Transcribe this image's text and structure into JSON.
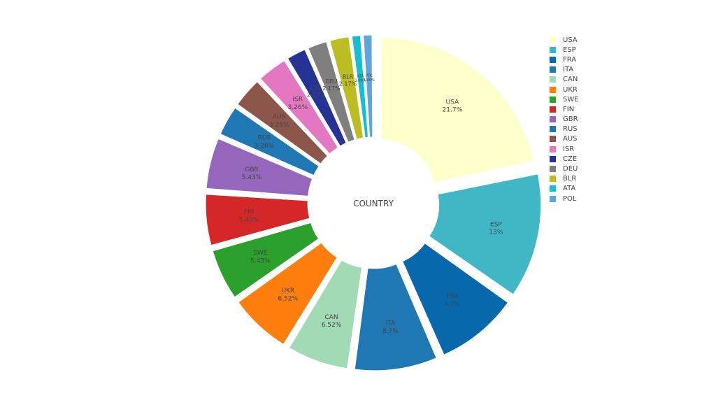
{
  "chart_data": {
    "type": "pie",
    "hole": true,
    "center_label": "COUNTRY",
    "legend_position": "top-right",
    "slices": [
      {
        "label": "USA",
        "percent_label": "21.7%",
        "value": 21.7,
        "color": "#ffffcc"
      },
      {
        "label": "ESP",
        "percent_label": "13%",
        "value": 13.04,
        "color": "#41b6c4"
      },
      {
        "label": "FRA",
        "percent_label": "8.7%",
        "value": 8.7,
        "color": "#0868ac"
      },
      {
        "label": "ITA",
        "percent_label": "8.7%",
        "value": 8.7,
        "color": "#1f77b4"
      },
      {
        "label": "CAN",
        "percent_label": "6.52%",
        "value": 6.52,
        "color": "#a1dab4"
      },
      {
        "label": "UKR",
        "percent_label": "6.52%",
        "value": 6.52,
        "color": "#ff7f0e"
      },
      {
        "label": "SWE",
        "percent_label": "5.43%",
        "value": 5.43,
        "color": "#2ca02c"
      },
      {
        "label": "FIN",
        "percent_label": "5.43%",
        "value": 5.43,
        "color": "#d62728"
      },
      {
        "label": "GBR",
        "percent_label": "5.43%",
        "value": 5.43,
        "color": "#9467bd"
      },
      {
        "label": "RUS",
        "percent_label": "3.26%",
        "value": 3.26,
        "color": "#1f77b4"
      },
      {
        "label": "AUS",
        "percent_label": "3.26%",
        "value": 3.26,
        "color": "#8c564b"
      },
      {
        "label": "ISR",
        "percent_label": "3.26%",
        "value": 3.26,
        "color": "#e377c2"
      },
      {
        "label": "CZE",
        "percent_label": "2.17%",
        "value": 2.17,
        "color": "#253494"
      },
      {
        "label": "DEU",
        "percent_label": "2.17%",
        "value": 2.17,
        "color": "#7f7f7f"
      },
      {
        "label": "BLR",
        "percent_label": "2.17%",
        "value": 2.17,
        "color": "#bcbd22"
      },
      {
        "label": "ATA",
        "percent_label": "1.09%",
        "value": 1.09,
        "color": "#17becf"
      },
      {
        "label": "POL",
        "percent_label": "1.09%",
        "value": 1.09,
        "color": "#5da5da"
      }
    ]
  }
}
